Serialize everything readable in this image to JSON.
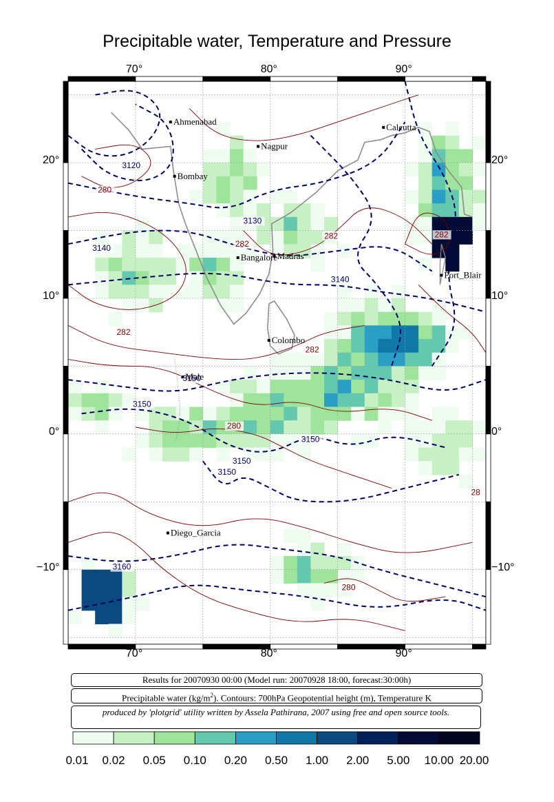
{
  "title": "Precipitable water, Temperature and Pressure",
  "map": {
    "lon_range": [
      65,
      96
    ],
    "lat_range": [
      -15.5,
      26
    ],
    "lon_ticks": [
      {
        "value": 70,
        "label": "70°"
      },
      {
        "value": 80,
        "label": "80°"
      },
      {
        "value": 90,
        "label": "90°"
      }
    ],
    "lat_ticks": [
      {
        "value": 20,
        "label": "20°"
      },
      {
        "value": 10,
        "label": "10°"
      },
      {
        "value": 0,
        "label": "0°"
      },
      {
        "value": -10,
        "label": "−10°"
      }
    ],
    "cities": [
      {
        "name": "Ahmenabad",
        "lon": 72.6,
        "lat": 23.0
      },
      {
        "name": "Nagpur",
        "lon": 79.1,
        "lat": 21.2
      },
      {
        "name": "Calcutta",
        "lon": 88.4,
        "lat": 22.6
      },
      {
        "name": "Bombay",
        "lon": 72.9,
        "lat": 19.0
      },
      {
        "name": "Bangalore",
        "lon": 77.6,
        "lat": 13.0
      },
      {
        "name": "Madras",
        "lon": 80.3,
        "lat": 13.1
      },
      {
        "name": "Port_Blair",
        "lon": 92.7,
        "lat": 11.7
      },
      {
        "name": "Colombo",
        "lon": 79.9,
        "lat": 6.9
      },
      {
        "name": "Male",
        "lon": 73.5,
        "lat": 4.2
      },
      {
        "name": "Diego_Garcia",
        "lon": 72.4,
        "lat": -7.3
      }
    ],
    "contour_labels": [
      {
        "text": "3120",
        "lon": 69.0,
        "lat": 19.6,
        "color": "#000066"
      },
      {
        "text": "280",
        "lon": 67.2,
        "lat": 17.8,
        "color": "#800000"
      },
      {
        "text": "3130",
        "lon": 78.0,
        "lat": 15.5,
        "color": "#000066"
      },
      {
        "text": "3140",
        "lon": 66.8,
        "lat": 13.5,
        "color": "#000066"
      },
      {
        "text": "282",
        "lon": 77.4,
        "lat": 13.8,
        "color": "#800000"
      },
      {
        "text": "282",
        "lon": 84.0,
        "lat": 14.4,
        "color": "#800000"
      },
      {
        "text": "3140",
        "lon": 84.5,
        "lat": 11.2,
        "color": "#000066"
      },
      {
        "text": "282",
        "lon": 92.2,
        "lat": 14.5,
        "color": "#800000"
      },
      {
        "text": "282",
        "lon": 68.6,
        "lat": 7.3,
        "color": "#800000"
      },
      {
        "text": "282",
        "lon": 82.6,
        "lat": 6.0,
        "color": "#800000"
      },
      {
        "text": "3150",
        "lon": 73.5,
        "lat": 3.9,
        "color": "#000066"
      },
      {
        "text": "3150",
        "lon": 69.8,
        "lat": 2.0,
        "color": "#000066"
      },
      {
        "text": "280",
        "lon": 76.8,
        "lat": 0.4,
        "color": "#800000"
      },
      {
        "text": "3150",
        "lon": 82.3,
        "lat": -0.6,
        "color": "#000066"
      },
      {
        "text": "3150",
        "lon": 77.2,
        "lat": -2.2,
        "color": "#000066"
      },
      {
        "text": "3150",
        "lon": 76.1,
        "lat": -3.0,
        "color": "#000066"
      },
      {
        "text": "3160",
        "lon": 68.3,
        "lat": -10.0,
        "color": "#000066"
      },
      {
        "text": "280",
        "lon": 85.3,
        "lat": -11.5,
        "color": "#800000"
      },
      {
        "text": "28",
        "lon": 94.9,
        "lat": -4.5,
        "color": "#800000"
      }
    ]
  },
  "info": {
    "line1": "Results for 20070930 00:00 (Model run: 20070928 18:00, forecast:30:00h)",
    "line2_a": "Precipitable water (kg/m",
    "line2_sup": "2",
    "line2_b": ").  Contours: 700hPa Geopotential height (m), Temperature K",
    "line3": "produced by 'plotgrid' utility written by Assela Pathirana, 2007 using free and open source tools."
  },
  "colorbar": {
    "labels": [
      "0.01",
      "0.02",
      "0.05",
      "0.10",
      "0.20",
      "0.50",
      "1.00",
      "2.00",
      "5.00",
      "10.00",
      "20.00"
    ],
    "colors": [
      "#f0fcf2",
      "#c8f0c5",
      "#9fe49b",
      "#64c8ae",
      "#2a9ec4",
      "#0f78a8",
      "#0a4a7e",
      "#05215a",
      "#020b33",
      "#010520"
    ]
  }
}
